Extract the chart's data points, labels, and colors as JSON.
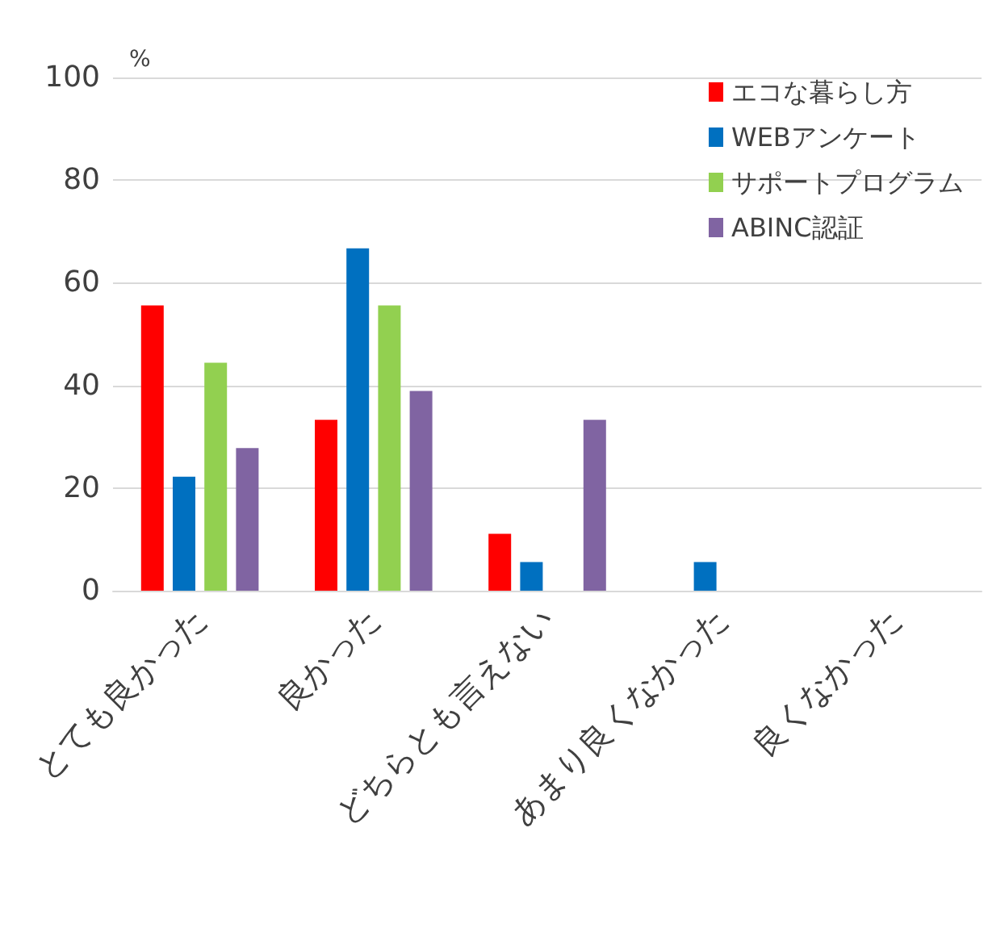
{
  "chart_data": {
    "type": "bar",
    "ylabel": "%",
    "categories": [
      "とても良かった",
      "良かった",
      "どちらとも言えない",
      "あまり良くなかった",
      "良くなかった"
    ],
    "series": [
      {
        "name": "エコな暮らし方",
        "color": "#ff0000",
        "values": [
          55.6,
          33.3,
          11.1,
          0,
          0
        ]
      },
      {
        "name": "WEBアンケート",
        "color": "#0070c0",
        "values": [
          22.2,
          66.7,
          5.6,
          5.6,
          0
        ]
      },
      {
        "name": "サポートプログラム",
        "color": "#92d050",
        "values": [
          44.4,
          55.6,
          0,
          0,
          0
        ]
      },
      {
        "name": "ABINC認証",
        "color": "#8064a2",
        "values": [
          27.8,
          38.9,
          33.3,
          0,
          0
        ]
      }
    ],
    "ylim": [
      0,
      100
    ],
    "yticks": [
      0,
      20,
      40,
      60,
      80,
      100
    ],
    "grid": "y",
    "legend": "top right"
  }
}
